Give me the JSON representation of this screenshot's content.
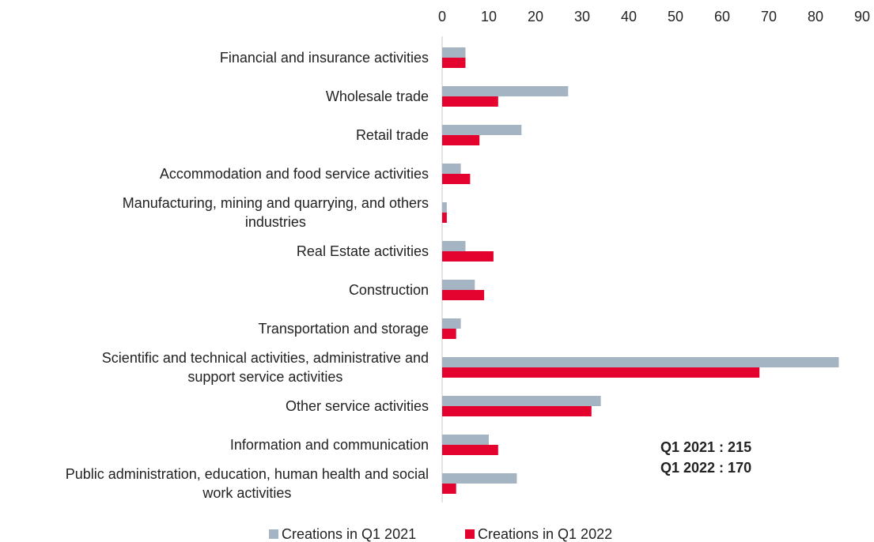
{
  "chart_data": {
    "type": "bar",
    "orientation": "horizontal",
    "categories": [
      "Financial and insurance activities",
      "Wholesale trade",
      "Retail trade",
      "Accommodation and food service activities",
      "Manufacturing, mining and quarrying, and others\nindustries",
      "Real Estate activities",
      "Construction",
      "Transportation and storage",
      "Scientific and technical activities, administrative and\nsupport service activities",
      "Other service activities",
      "Information and communication",
      "Public administration, education, human health and social\nwork activities"
    ],
    "series": [
      {
        "name": "Creations in Q1 2021",
        "color": "#a5b4c3",
        "values": [
          5,
          27,
          17,
          4,
          1,
          5,
          7,
          4,
          85,
          34,
          10,
          16
        ]
      },
      {
        "name": "Creations in Q1 2022",
        "color": "#e4032e",
        "values": [
          5,
          12,
          8,
          6,
          1,
          11,
          9,
          3,
          68,
          32,
          12,
          3
        ]
      }
    ],
    "xlim": [
      0,
      90
    ],
    "xticks": [
      0,
      10,
      20,
      30,
      40,
      50,
      60,
      70,
      80,
      90
    ],
    "grid": false,
    "annotations": [
      "Q1 2021 : 215",
      "Q1 2022 : 170"
    ],
    "legend": "bottom"
  }
}
